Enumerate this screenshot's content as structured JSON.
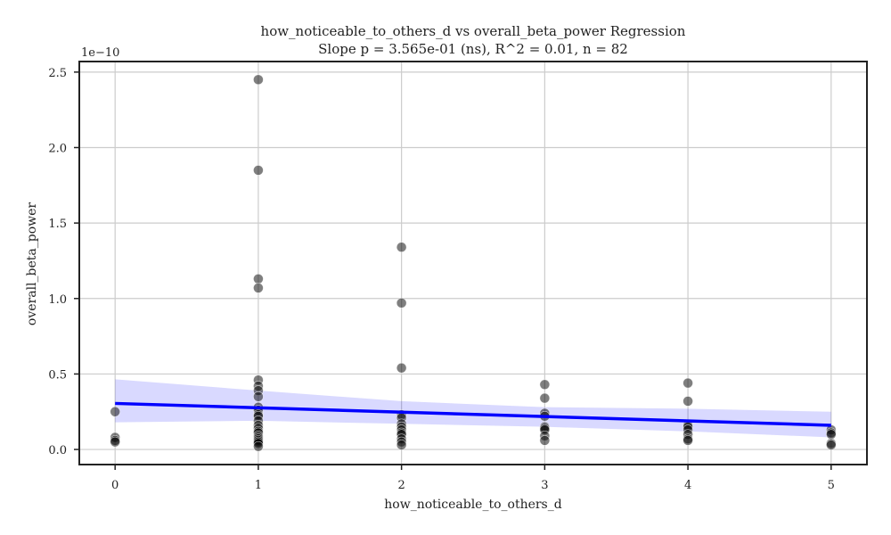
{
  "chart_data": {
    "type": "scatter",
    "title_line1": "how_noticeable_to_others_d vs overall_beta_power Regression",
    "title_line2": "Slope p = 3.565e-01 (ns), R^2 = 0.01, n = 82",
    "xlabel": "how_noticeable_to_others_d",
    "ylabel": "overall_beta_power",
    "y_offset_text": "1e−10",
    "xlim": [
      -0.25,
      5.25
    ],
    "ylim": [
      -0.1,
      2.57
    ],
    "x_ticks": [
      0,
      1,
      2,
      3,
      4,
      5
    ],
    "x_tick_labels": [
      "0",
      "1",
      "2",
      "3",
      "4",
      "5"
    ],
    "y_ticks": [
      0.0,
      0.5,
      1.0,
      1.5,
      2.0,
      2.5
    ],
    "y_tick_labels": [
      "0.0",
      "0.5",
      "1.0",
      "1.5",
      "2.0",
      "2.5"
    ],
    "grid": true,
    "point_color": "#000000",
    "point_opacity": 0.5,
    "line_color": "#0000ff",
    "band_color": "#0000ff",
    "points": [
      {
        "x": 0,
        "y": 0.25
      },
      {
        "x": 0,
        "y": 0.08
      },
      {
        "x": 0,
        "y": 0.06
      },
      {
        "x": 0,
        "y": 0.05
      },
      {
        "x": 1,
        "y": 2.45
      },
      {
        "x": 1,
        "y": 1.85
      },
      {
        "x": 1,
        "y": 1.13
      },
      {
        "x": 1,
        "y": 1.07
      },
      {
        "x": 1,
        "y": 0.46
      },
      {
        "x": 1,
        "y": 0.42
      },
      {
        "x": 1,
        "y": 0.39
      },
      {
        "x": 1,
        "y": 0.35
      },
      {
        "x": 1,
        "y": 0.28
      },
      {
        "x": 1,
        "y": 0.26
      },
      {
        "x": 1,
        "y": 0.23
      },
      {
        "x": 1,
        "y": 0.22
      },
      {
        "x": 1,
        "y": 0.19
      },
      {
        "x": 1,
        "y": 0.16
      },
      {
        "x": 1,
        "y": 0.14
      },
      {
        "x": 1,
        "y": 0.12
      },
      {
        "x": 1,
        "y": 0.11
      },
      {
        "x": 1,
        "y": 0.09
      },
      {
        "x": 1,
        "y": 0.08
      },
      {
        "x": 1,
        "y": 0.07
      },
      {
        "x": 1,
        "y": 0.06
      },
      {
        "x": 1,
        "y": 0.05
      },
      {
        "x": 1,
        "y": 0.04
      },
      {
        "x": 1,
        "y": 0.02
      },
      {
        "x": 2,
        "y": 1.34
      },
      {
        "x": 2,
        "y": 0.97
      },
      {
        "x": 2,
        "y": 0.54
      },
      {
        "x": 2,
        "y": 0.23
      },
      {
        "x": 2,
        "y": 0.21
      },
      {
        "x": 2,
        "y": 0.17
      },
      {
        "x": 2,
        "y": 0.15
      },
      {
        "x": 2,
        "y": 0.13
      },
      {
        "x": 2,
        "y": 0.11
      },
      {
        "x": 2,
        "y": 0.1
      },
      {
        "x": 2,
        "y": 0.07
      },
      {
        "x": 2,
        "y": 0.05
      },
      {
        "x": 2,
        "y": 0.03
      },
      {
        "x": 3,
        "y": 0.43
      },
      {
        "x": 3,
        "y": 0.34
      },
      {
        "x": 3,
        "y": 0.24
      },
      {
        "x": 3,
        "y": 0.22
      },
      {
        "x": 3,
        "y": 0.15
      },
      {
        "x": 3,
        "y": 0.14
      },
      {
        "x": 3,
        "y": 0.13
      },
      {
        "x": 3,
        "y": 0.09
      },
      {
        "x": 3,
        "y": 0.06
      },
      {
        "x": 4,
        "y": 0.44
      },
      {
        "x": 4,
        "y": 0.32
      },
      {
        "x": 4,
        "y": 0.16
      },
      {
        "x": 4,
        "y": 0.15
      },
      {
        "x": 4,
        "y": 0.13
      },
      {
        "x": 4,
        "y": 0.1
      },
      {
        "x": 4,
        "y": 0.07
      },
      {
        "x": 4,
        "y": 0.06
      },
      {
        "x": 5,
        "y": 0.13
      },
      {
        "x": 5,
        "y": 0.11
      },
      {
        "x": 5,
        "y": 0.1
      },
      {
        "x": 5,
        "y": 0.04
      },
      {
        "x": 5,
        "y": 0.03
      }
    ],
    "regression": {
      "x": [
        0,
        5
      ],
      "y": [
        0.305,
        0.16
      ]
    },
    "confidence_band": {
      "x": [
        0,
        1,
        2,
        3,
        4,
        5
      ],
      "upper": [
        0.465,
        0.39,
        0.32,
        0.28,
        0.27,
        0.25
      ],
      "lower": [
        0.18,
        0.19,
        0.17,
        0.15,
        0.12,
        0.08
      ]
    }
  }
}
